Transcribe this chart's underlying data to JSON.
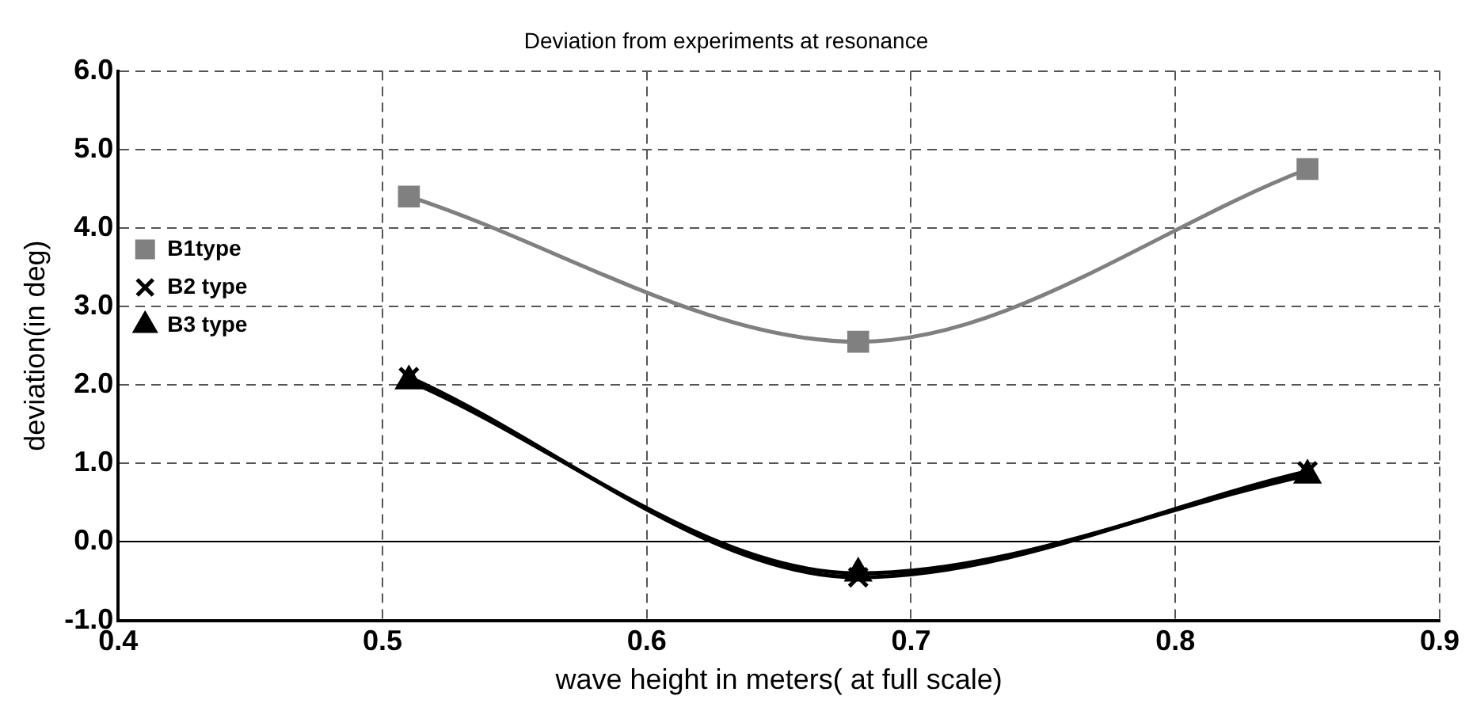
{
  "chart_data": {
    "type": "line",
    "title": "Deviation from experiments at resonance",
    "xlabel": "wave height in meters( at full scale)",
    "ylabel": "deviation(in deg)",
    "x": [
      0.51,
      0.68,
      0.85
    ],
    "series": [
      {
        "name": "B1type",
        "color": "#808080",
        "values": [
          4.4,
          2.55,
          4.75
        ],
        "marker": "square"
      },
      {
        "name": "B2 type",
        "color": "#000000",
        "values": [
          2.1,
          -0.45,
          0.9
        ],
        "marker": "cross"
      },
      {
        "name": "B3 type",
        "color": "#000000",
        "values": [
          2.05,
          -0.4,
          0.85
        ],
        "marker": "triangle"
      }
    ],
    "xlim": [
      0.4,
      0.9
    ],
    "xticks": [
      {
        "value": 0.4,
        "label": "0.4"
      },
      {
        "value": 0.5,
        "label": "0.5"
      },
      {
        "value": 0.6,
        "label": "0.6"
      },
      {
        "value": 0.7,
        "label": "0.7"
      },
      {
        "value": 0.8,
        "label": "0.8"
      },
      {
        "value": 0.9,
        "label": "0.9"
      }
    ],
    "ylim": [
      -1,
      6
    ],
    "yticks": [
      {
        "value": -1,
        "label": "-1.0"
      },
      {
        "value": 0,
        "label": "0.0"
      },
      {
        "value": 1,
        "label": "1.0"
      },
      {
        "value": 2,
        "label": "2.0"
      },
      {
        "value": 3,
        "label": "3.0"
      },
      {
        "value": 4,
        "label": "4.0"
      },
      {
        "value": 5,
        "label": "5.0"
      },
      {
        "value": 6,
        "label": "6.0"
      }
    ],
    "grid": true,
    "legend": "top",
    "line_style": "solid"
  }
}
